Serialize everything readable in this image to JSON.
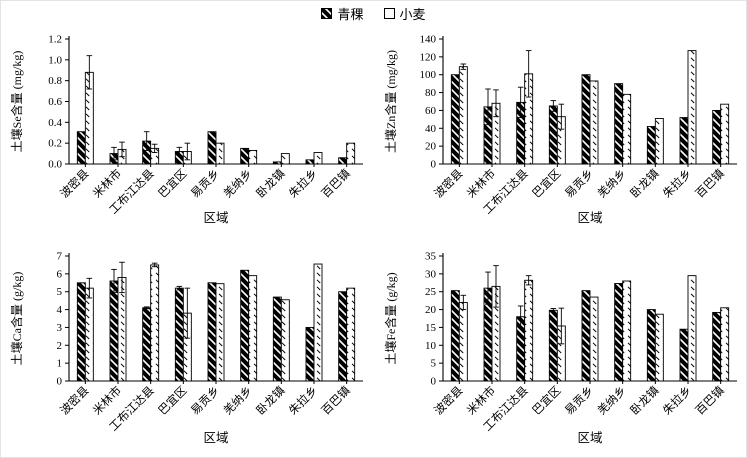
{
  "figure": {
    "background": "#ffffff",
    "axis_color": "#000000",
    "bar_outline_color": "#000000"
  },
  "legend": {
    "items": [
      {
        "label": "青稞",
        "swatch": "barley-hatch"
      },
      {
        "label": "小麦",
        "swatch": "wheat-hatch"
      }
    ]
  },
  "chart_data": [
    {
      "id": "soil-se",
      "type": "bar",
      "ylabel": "土壤Se含量 (mg/kg)",
      "xlabel": "区域",
      "ylim": [
        0,
        1.2
      ],
      "ytick_step": 0.2,
      "ytick_decimals": 1,
      "grid": false,
      "categories": [
        "波密县",
        "米林市",
        "工布江达县",
        "巴宜区",
        "易贡乡",
        "羌纳乡",
        "卧龙镇",
        "朱拉乡",
        "百巴镇"
      ],
      "series": [
        {
          "name": "青稞",
          "values": [
            0.31,
            0.1,
            0.22,
            0.12,
            0.31,
            0.15,
            0.02,
            0.04,
            0.06
          ],
          "errors": [
            0,
            0.06,
            0.09,
            0.04,
            0,
            0,
            0,
            0,
            0
          ]
        },
        {
          "name": "小麦",
          "values": [
            0.88,
            0.14,
            0.15,
            0.12,
            0.2,
            0.13,
            0.1,
            0.11,
            0.2
          ],
          "errors": [
            0.16,
            0.07,
            0.04,
            0.08,
            0,
            0,
            0,
            0,
            0
          ]
        }
      ]
    },
    {
      "id": "soil-zn",
      "type": "bar",
      "ylabel": "土壤Zn含量 (mg/kg)",
      "xlabel": "区域",
      "ylim": [
        0,
        140
      ],
      "ytick_step": 20,
      "ytick_decimals": 0,
      "grid": false,
      "categories": [
        "波密县",
        "米林市",
        "工布江达县",
        "巴宜区",
        "易贡乡",
        "羌纳乡",
        "卧龙镇",
        "朱拉乡",
        "百巴镇"
      ],
      "series": [
        {
          "name": "青稞",
          "values": [
            100,
            64,
            69,
            65,
            100,
            90,
            42,
            52,
            60
          ],
          "errors": [
            0,
            20,
            17,
            6,
            0,
            0,
            0,
            0,
            0
          ]
        },
        {
          "name": "小麦",
          "values": [
            109,
            68,
            101,
            53,
            93,
            78,
            51,
            127,
            67
          ],
          "errors": [
            3,
            15,
            26,
            14,
            0,
            0,
            0,
            0,
            0
          ]
        }
      ]
    },
    {
      "id": "soil-ca",
      "type": "bar",
      "ylabel": "土壤Ca含量 (g/kg)",
      "xlabel": "区域",
      "ylim": [
        0,
        7
      ],
      "ytick_step": 1,
      "ytick_decimals": 0,
      "grid": false,
      "categories": [
        "波密县",
        "米林市",
        "工布江达县",
        "巴宜区",
        "易贡乡",
        "羌纳乡",
        "卧龙镇",
        "朱拉乡",
        "百巴镇"
      ],
      "series": [
        {
          "name": "青稞",
          "values": [
            5.5,
            5.6,
            4.1,
            5.2,
            5.5,
            6.2,
            4.7,
            3.0,
            5.0
          ],
          "errors": [
            0,
            0.65,
            0.05,
            0.1,
            0,
            0,
            0,
            0,
            0
          ]
        },
        {
          "name": "小麦",
          "values": [
            5.2,
            5.8,
            6.5,
            3.8,
            5.45,
            5.9,
            4.55,
            6.55,
            5.2
          ],
          "errors": [
            0.55,
            0.85,
            0.1,
            1.4,
            0,
            0,
            0,
            0,
            0
          ]
        }
      ]
    },
    {
      "id": "soil-fe",
      "type": "bar",
      "ylabel": "土壤Fe含量 (g/kg)",
      "xlabel": "区域",
      "ylim": [
        0,
        35
      ],
      "ytick_step": 5,
      "ytick_decimals": 0,
      "grid": false,
      "categories": [
        "波密县",
        "米林市",
        "工布江达县",
        "巴宜区",
        "易贡乡",
        "羌纳乡",
        "卧龙镇",
        "朱拉乡",
        "百巴镇"
      ],
      "series": [
        {
          "name": "青稞",
          "values": [
            25.3,
            26.0,
            18.0,
            19.8,
            25.3,
            27.3,
            20.0,
            14.5,
            19.2
          ],
          "errors": [
            0,
            4.5,
            3.0,
            0.5,
            0,
            0,
            0,
            0,
            0
          ]
        },
        {
          "name": "小麦",
          "values": [
            22.0,
            26.5,
            28.2,
            15.4,
            23.5,
            28.0,
            18.7,
            29.5,
            20.5
          ],
          "errors": [
            2.0,
            5.8,
            1.3,
            5.0,
            0,
            0,
            0,
            0,
            0
          ]
        }
      ]
    }
  ]
}
